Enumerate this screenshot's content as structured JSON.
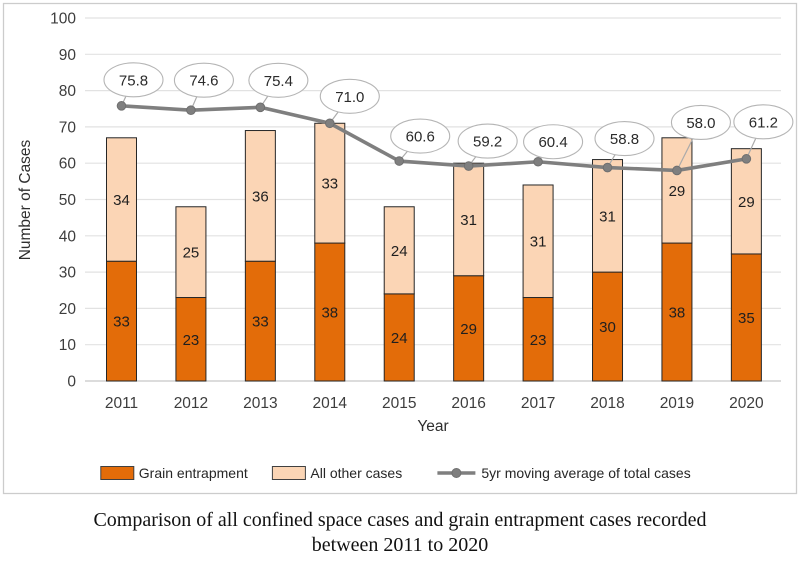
{
  "figure": {
    "caption_line1": "Comparison of all confined space cases and grain entrapment cases recorded",
    "caption_line2": "between 2011 to 2020"
  },
  "chart_data": {
    "type": "bar",
    "stacked": true,
    "title": "",
    "xlabel": "Year",
    "ylabel": "Number of Cases",
    "ylim": [
      0,
      100
    ],
    "ytick_step": 10,
    "grid": true,
    "legend_position": "bottom",
    "categories": [
      "2011",
      "2012",
      "2013",
      "2014",
      "2015",
      "2016",
      "2017",
      "2018",
      "2019",
      "2020"
    ],
    "series": [
      {
        "name": "Grain entrapment",
        "color": "#E36C09",
        "values": [
          33,
          23,
          33,
          38,
          24,
          29,
          23,
          30,
          38,
          35
        ]
      },
      {
        "name": "All other cases",
        "color": "#FBD5B5",
        "values": [
          34,
          25,
          36,
          33,
          24,
          31,
          31,
          31,
          29,
          29
        ]
      }
    ],
    "line_series": {
      "name": "5yr moving average of total cases",
      "color": "#7F7F7F",
      "values": [
        75.8,
        74.6,
        75.4,
        71.0,
        60.6,
        59.2,
        60.4,
        58.8,
        58.0,
        61.2
      ],
      "callout_labels": [
        "75.8",
        "74.6",
        "75.4",
        "71.0",
        "60.6",
        "59.2",
        "60.4",
        "58.8",
        "58.0",
        "61.2"
      ]
    },
    "bar_border_color": "#262626",
    "grid_color": "#e2e2e2",
    "axis_line_color": "#c6c6c6",
    "tick_label_color": "#3d3d3d",
    "callout_border_color": "#b5b5b5",
    "chart_border_color": "#cccccc"
  }
}
